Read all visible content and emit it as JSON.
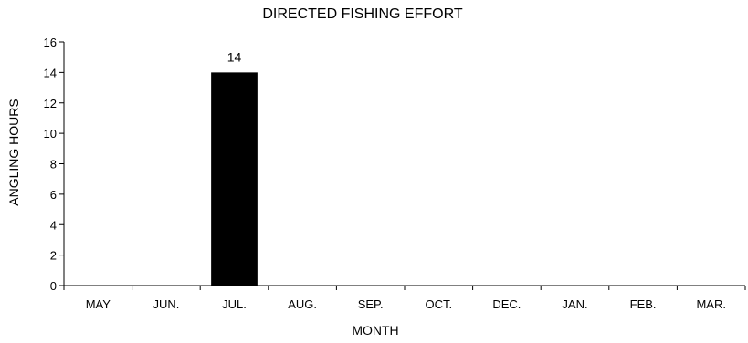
{
  "chart_data": {
    "type": "bar",
    "title": "DIRECTED FISHING EFFORT",
    "xlabel": "MONTH",
    "ylabel": "ANGLING HOURS",
    "categories": [
      "MAY",
      "JUN.",
      "JUL.",
      "AUG.",
      "SEP.",
      "OCT.",
      "DEC.",
      "JAN.",
      "FEB.",
      "MAR."
    ],
    "values": [
      0,
      0,
      14,
      0,
      0,
      0,
      0,
      0,
      0,
      0
    ],
    "data_labels": [
      "",
      "",
      "14",
      "",
      "",
      "",
      "",
      "",
      "",
      ""
    ],
    "ylim": [
      0,
      16
    ],
    "yticks": [
      "0",
      "2",
      "4",
      "6",
      "8",
      "10",
      "12",
      "14",
      "16"
    ],
    "grid": false,
    "legend": "none",
    "bar_color": "#000000"
  }
}
